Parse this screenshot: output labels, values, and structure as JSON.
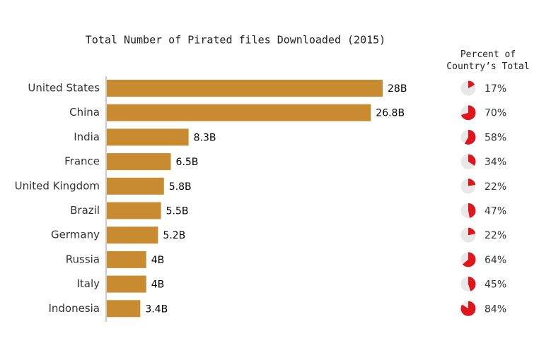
{
  "chart_data": [
    {
      "type": "bar",
      "title": "Total Number of Pirated files Downloaded (2015)",
      "categories": [
        "United States",
        "China",
        "India",
        "France",
        "United Kingdom",
        "Brazil",
        "Germany",
        "Russia",
        "Italy",
        "Indonesia"
      ],
      "values": [
        28,
        26.8,
        8.3,
        6.5,
        5.8,
        5.5,
        5.2,
        4,
        4,
        3.4
      ],
      "value_labels": [
        "28B",
        "26.8B",
        "8.3B",
        "6.5B",
        "5.8B",
        "5.5B",
        "5.2B",
        "4B",
        "4B",
        "3.4B"
      ],
      "color": "#c98b2f"
    },
    {
      "type": "pie",
      "title": "Percent of Country’s Total",
      "values": [
        17,
        70,
        58,
        34,
        22,
        47,
        22,
        64,
        45,
        84
      ],
      "value_labels": [
        "17%",
        "70%",
        "58%",
        "34%",
        "22%",
        "47%",
        "22%",
        "64%",
        "45%",
        "84%"
      ],
      "color": "#e0151b"
    }
  ]
}
